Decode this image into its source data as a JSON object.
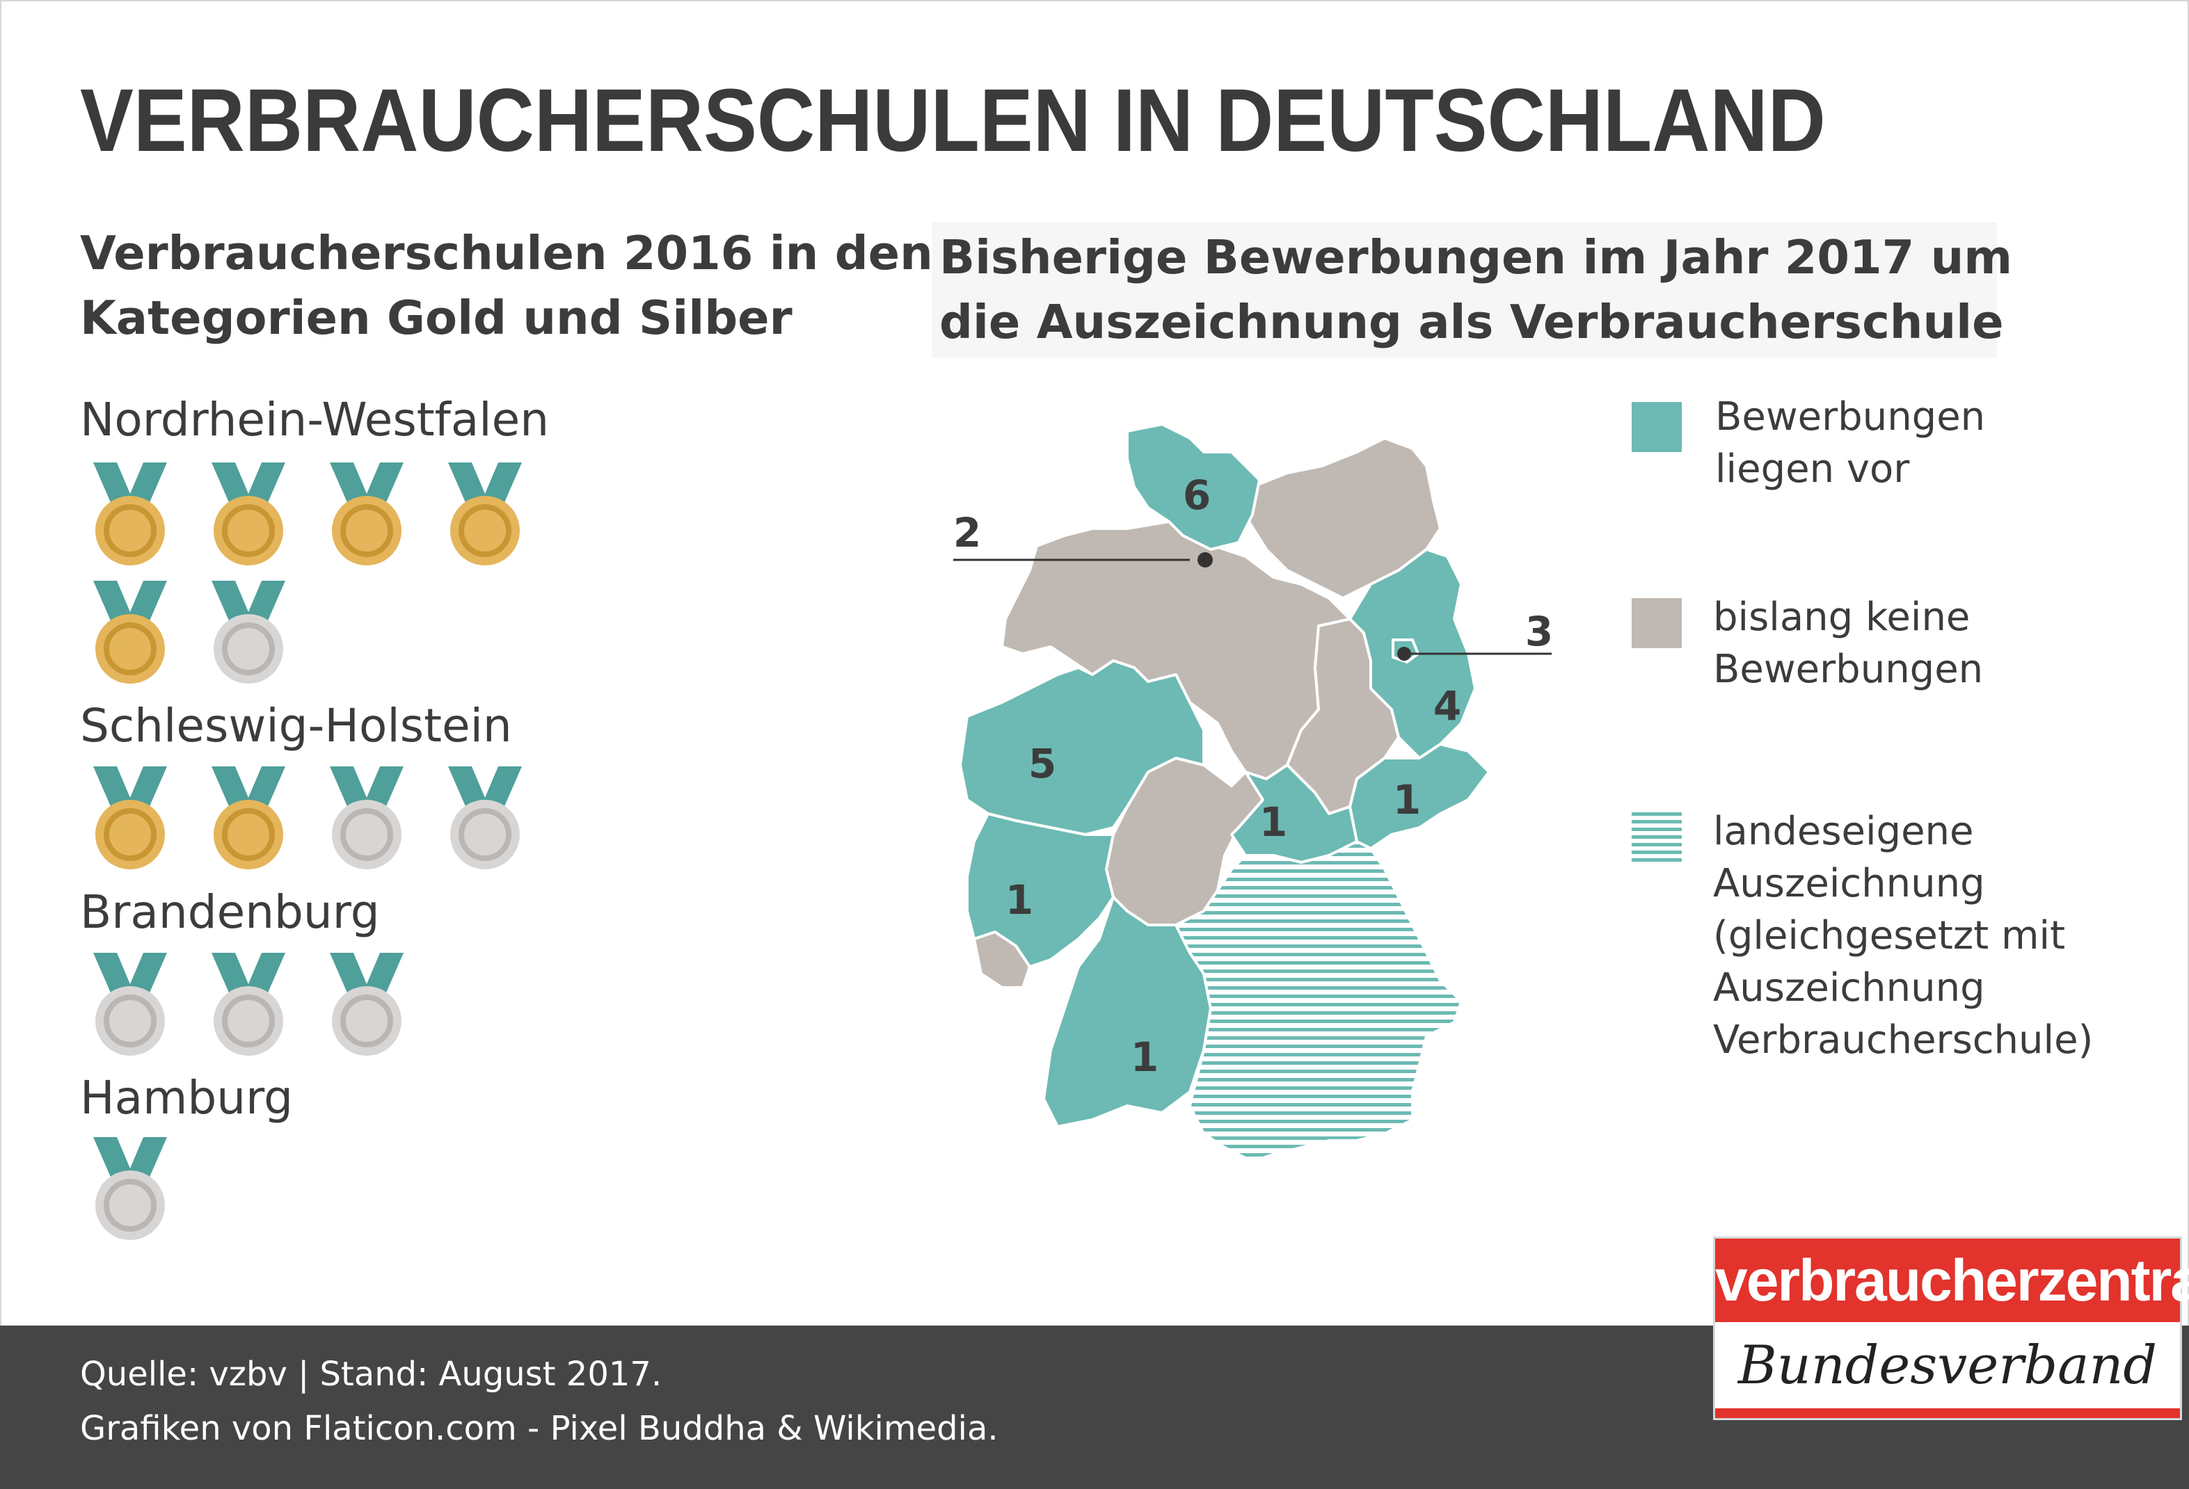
{
  "title": "VERBRAUCHERSCHULEN IN DEUTSCHLAND",
  "left_heading": [
    "Verbraucherschulen 2016 in den",
    "Kategorien Gold und Silber"
  ],
  "right_heading": [
    "Bisherige Bewerbungen im Jahr 2017 um",
    "die Auszeichnung als Verbraucherschule"
  ],
  "medal_states": [
    {
      "label": "Nordrhein-Westfalen",
      "gold": 5,
      "silver": 1
    },
    {
      "label": "Schleswig-Holstein",
      "gold": 2,
      "silver": 2
    },
    {
      "label": "Brandenburg",
      "gold": 0,
      "silver": 3
    },
    {
      "label": "Hamburg",
      "gold": 0,
      "silver": 1
    }
  ],
  "map": {
    "labels": [
      "6",
      "2",
      "3",
      "4",
      "5",
      "1",
      "1",
      "1",
      "1"
    ],
    "applications": {
      "Schleswig-Holstein": 6,
      "Hamburg": 2,
      "Berlin": 3,
      "Brandenburg": 4,
      "Nordrhein-Westfalen": 5,
      "Thüringen": 1,
      "Sachsen": 1,
      "Rheinland-Pfalz": 1,
      "Baden-Württemberg": 1
    }
  },
  "legend": [
    {
      "lines": [
        "Bewerbungen",
        "liegen vor"
      ],
      "style": "teal"
    },
    {
      "lines": [
        "bislang keine",
        "Bewerbungen"
      ],
      "style": "gray"
    },
    {
      "lines": [
        "landeseigene",
        "Auszeichnung",
        "(gleichgesetzt mit",
        "Auszeichnung",
        "Verbraucherschule)"
      ],
      "style": "hatched"
    }
  ],
  "footer": {
    "line1": "Quelle: vzbv | Stand: August 2017.",
    "line2": "Grafiken von Flaticon.com - Pixel Buddha & Wikimedia."
  },
  "logo": {
    "top": "verbraucherzentrale",
    "bottom": "Bundesverband"
  },
  "colors": {
    "teal": "#6cbab3",
    "gray": "#c0b9b3",
    "gold": "#e4b55a",
    "silver": "#d8d6d5",
    "ribbon": "#4f9f9a",
    "dark": "#454545",
    "brand_red": "#e2332c"
  }
}
